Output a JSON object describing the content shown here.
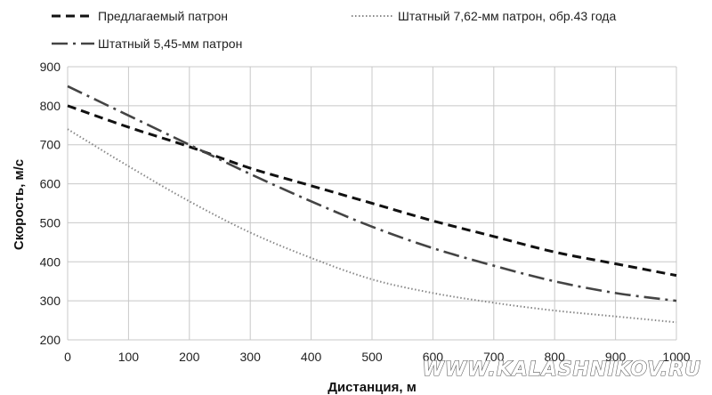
{
  "chart_data": {
    "type": "line",
    "title": "",
    "xlabel": "Дистанция, м",
    "ylabel": "Скорость, м/с",
    "xlim": [
      0,
      1000
    ],
    "ylim": [
      200,
      900
    ],
    "xticks": [
      0,
      100,
      200,
      300,
      400,
      500,
      600,
      700,
      800,
      900,
      1000
    ],
    "yticks": [
      200,
      300,
      400,
      500,
      600,
      700,
      800,
      900
    ],
    "grid": true,
    "legend_position": "top",
    "x": [
      0,
      100,
      200,
      300,
      400,
      500,
      600,
      700,
      800,
      900,
      1000
    ],
    "series": [
      {
        "name": "Предлагаемый патрон",
        "style": "dashed",
        "color": "#111111",
        "values": [
          800,
          745,
          695,
          640,
          595,
          550,
          505,
          465,
          425,
          395,
          365
        ]
      },
      {
        "name": "Штатный 7,62-мм патрон, обр.43 года",
        "style": "dotted",
        "color": "#888888",
        "values": [
          740,
          645,
          555,
          475,
          410,
          355,
          320,
          295,
          275,
          260,
          245
        ]
      },
      {
        "name": "Штатный 5,45-мм патрон",
        "style": "dashdot",
        "color": "#444444",
        "values": [
          850,
          775,
          700,
          625,
          555,
          490,
          435,
          390,
          350,
          320,
          300
        ]
      }
    ]
  },
  "watermark": "WWW.KALASHNIKOV.RU"
}
